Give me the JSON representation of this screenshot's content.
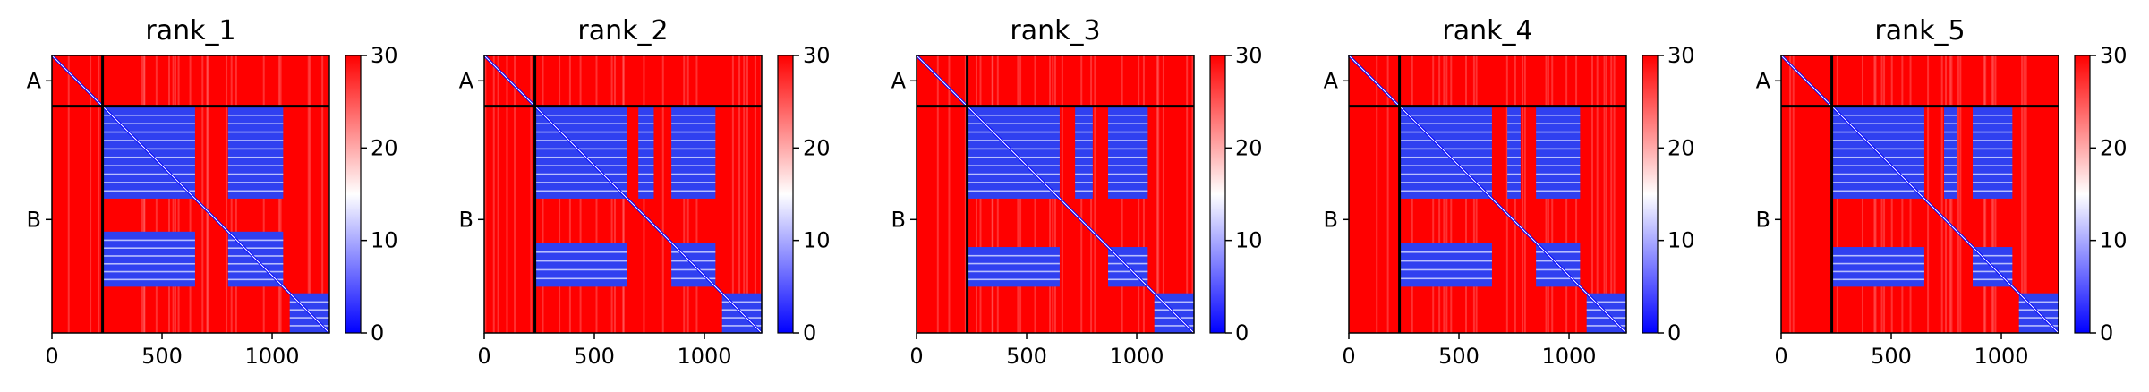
{
  "figure": {
    "panel_count": 5
  },
  "chart_data": [
    {
      "type": "heatmap",
      "title": "rank_1",
      "xlim": [
        0,
        1260
      ],
      "x_ticks": [
        0,
        500,
        1000
      ],
      "x_tick_labels": [
        "0",
        "500",
        "1000"
      ],
      "chain_labels": [
        "A",
        "B"
      ],
      "chain_boundary": 230,
      "colorbar": {
        "range": [
          0,
          30
        ],
        "ticks": [
          0,
          10,
          20,
          30
        ],
        "tick_labels": [
          "0",
          "10",
          "20",
          "30"
        ],
        "colors": [
          "#0000ff",
          "#ffffff",
          "#ff0000"
        ]
      },
      "low_value_blocks": [
        {
          "x": [
            230,
            650
          ],
          "y": [
            230,
            650
          ]
        },
        {
          "x": [
            800,
            1050
          ],
          "y": [
            230,
            650
          ]
        },
        {
          "x": [
            230,
            650
          ],
          "y": [
            800,
            1050
          ]
        },
        {
          "x": [
            800,
            1050
          ],
          "y": [
            800,
            1050
          ]
        },
        {
          "x": [
            1080,
            1260
          ],
          "y": [
            1080,
            1260
          ]
        }
      ]
    },
    {
      "type": "heatmap",
      "title": "rank_2",
      "xlim": [
        0,
        1260
      ],
      "x_ticks": [
        0,
        500,
        1000
      ],
      "x_tick_labels": [
        "0",
        "500",
        "1000"
      ],
      "chain_labels": [
        "A",
        "B"
      ],
      "chain_boundary": 230,
      "colorbar": {
        "range": [
          0,
          30
        ],
        "ticks": [
          0,
          10,
          20,
          30
        ],
        "tick_labels": [
          "0",
          "10",
          "20",
          "30"
        ],
        "colors": [
          "#0000ff",
          "#ffffff",
          "#ff0000"
        ]
      },
      "low_value_blocks": [
        {
          "x": [
            230,
            650
          ],
          "y": [
            230,
            650
          ]
        },
        {
          "x": [
            700,
            770
          ],
          "y": [
            230,
            650
          ]
        },
        {
          "x": [
            850,
            1050
          ],
          "y": [
            230,
            650
          ]
        },
        {
          "x": [
            230,
            650
          ],
          "y": [
            850,
            1050
          ]
        },
        {
          "x": [
            850,
            1050
          ],
          "y": [
            850,
            1050
          ]
        },
        {
          "x": [
            1080,
            1260
          ],
          "y": [
            1080,
            1260
          ]
        }
      ]
    },
    {
      "type": "heatmap",
      "title": "rank_3",
      "xlim": [
        0,
        1260
      ],
      "x_ticks": [
        0,
        500,
        1000
      ],
      "x_tick_labels": [
        "0",
        "500",
        "1000"
      ],
      "chain_labels": [
        "A",
        "B"
      ],
      "chain_boundary": 230,
      "colorbar": {
        "range": [
          0,
          30
        ],
        "ticks": [
          0,
          10,
          20,
          30
        ],
        "tick_labels": [
          "0",
          "10",
          "20",
          "30"
        ],
        "colors": [
          "#0000ff",
          "#ffffff",
          "#ff0000"
        ]
      },
      "low_value_blocks": [
        {
          "x": [
            230,
            650
          ],
          "y": [
            230,
            650
          ]
        },
        {
          "x": [
            720,
            800
          ],
          "y": [
            230,
            650
          ]
        },
        {
          "x": [
            870,
            1050
          ],
          "y": [
            230,
            650
          ]
        },
        {
          "x": [
            230,
            650
          ],
          "y": [
            870,
            1050
          ]
        },
        {
          "x": [
            870,
            1050
          ],
          "y": [
            870,
            1050
          ]
        },
        {
          "x": [
            1080,
            1260
          ],
          "y": [
            1080,
            1260
          ]
        }
      ]
    },
    {
      "type": "heatmap",
      "title": "rank_4",
      "xlim": [
        0,
        1260
      ],
      "x_ticks": [
        0,
        500,
        1000
      ],
      "x_tick_labels": [
        "0",
        "500",
        "1000"
      ],
      "chain_labels": [
        "A",
        "B"
      ],
      "chain_boundary": 230,
      "colorbar": {
        "range": [
          0,
          30
        ],
        "ticks": [
          0,
          10,
          20,
          30
        ],
        "tick_labels": [
          "0",
          "10",
          "20",
          "30"
        ],
        "colors": [
          "#0000ff",
          "#ffffff",
          "#ff0000"
        ]
      },
      "low_value_blocks": [
        {
          "x": [
            230,
            650
          ],
          "y": [
            230,
            650
          ]
        },
        {
          "x": [
            720,
            780
          ],
          "y": [
            230,
            650
          ]
        },
        {
          "x": [
            850,
            1050
          ],
          "y": [
            230,
            650
          ]
        },
        {
          "x": [
            230,
            650
          ],
          "y": [
            850,
            1050
          ]
        },
        {
          "x": [
            850,
            1050
          ],
          "y": [
            850,
            1050
          ]
        },
        {
          "x": [
            1080,
            1260
          ],
          "y": [
            1080,
            1260
          ]
        }
      ]
    },
    {
      "type": "heatmap",
      "title": "rank_5",
      "xlim": [
        0,
        1260
      ],
      "x_ticks": [
        0,
        500,
        1000
      ],
      "x_tick_labels": [
        "0",
        "500",
        "1000"
      ],
      "chain_labels": [
        "A",
        "B"
      ],
      "chain_boundary": 230,
      "colorbar": {
        "range": [
          0,
          30
        ],
        "ticks": [
          0,
          10,
          20,
          30
        ],
        "tick_labels": [
          "0",
          "10",
          "20",
          "30"
        ],
        "colors": [
          "#0000ff",
          "#ffffff",
          "#ff0000"
        ]
      },
      "low_value_blocks": [
        {
          "x": [
            230,
            650
          ],
          "y": [
            230,
            650
          ]
        },
        {
          "x": [
            740,
            800
          ],
          "y": [
            230,
            650
          ]
        },
        {
          "x": [
            870,
            1050
          ],
          "y": [
            230,
            650
          ]
        },
        {
          "x": [
            230,
            650
          ],
          "y": [
            870,
            1050
          ]
        },
        {
          "x": [
            870,
            1050
          ],
          "y": [
            870,
            1050
          ]
        },
        {
          "x": [
            1080,
            1260
          ],
          "y": [
            1080,
            1260
          ]
        }
      ]
    }
  ]
}
